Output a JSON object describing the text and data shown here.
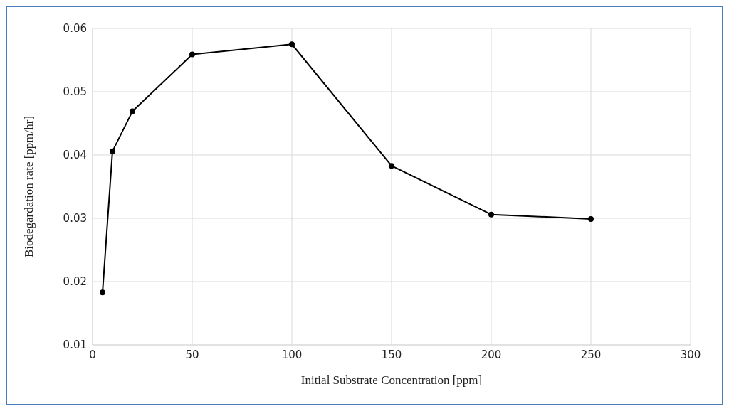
{
  "chart_data": {
    "type": "line",
    "xlabel": "Initial Substrate Concentration [ppm]",
    "ylabel": "Biodegardation rate [ppm/hr]",
    "x": [
      5,
      10,
      20,
      50,
      100,
      150,
      200,
      250
    ],
    "series": [
      {
        "color": "#000000",
        "values": [
          0.0183,
          0.0406,
          0.0469,
          0.0559,
          0.0575,
          0.0383,
          0.0306,
          0.0299
        ]
      }
    ],
    "xlim": [
      0,
      300
    ],
    "xticks": [
      0,
      50,
      100,
      150,
      200,
      250,
      300
    ],
    "ylim": [
      0.01,
      0.06
    ],
    "yticks": [
      0.01,
      0.02,
      0.03,
      0.04,
      0.05,
      0.06
    ],
    "grid": true,
    "marker": "circle",
    "line_style": "solid"
  }
}
